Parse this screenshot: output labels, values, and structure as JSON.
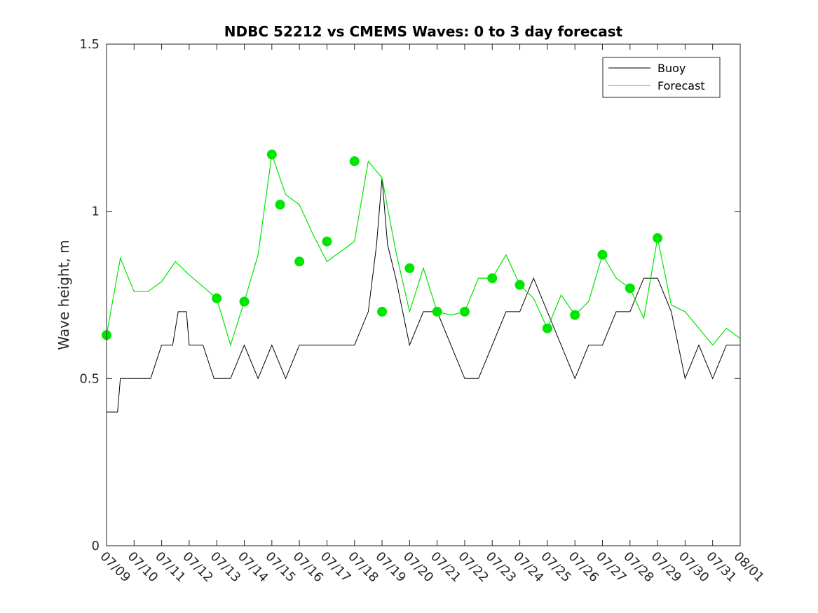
{
  "chart_data": {
    "type": "line",
    "title": "NDBC 52212 vs CMEMS Waves: 0 to 3 day forecast",
    "xlabel": "",
    "ylabel": "Wave height, m",
    "xlim": [
      "07/09",
      "08/01"
    ],
    "ylim": [
      0,
      1.5
    ],
    "yticks": [
      0,
      0.5,
      1,
      1.5
    ],
    "ytick_labels": [
      "0",
      "0.5",
      "1",
      "1.5"
    ],
    "xtick_labels": [
      "07/09",
      "07/10",
      "07/11",
      "07/12",
      "07/13",
      "07/14",
      "07/15",
      "07/16",
      "07/17",
      "07/18",
      "07/19",
      "07/20",
      "07/21",
      "07/22",
      "07/23",
      "07/24",
      "07/25",
      "07/26",
      "07/27",
      "07/28",
      "07/29",
      "07/30",
      "07/31",
      "08/01"
    ],
    "legend": {
      "location": "top-right",
      "entries": [
        {
          "label": "Buoy",
          "color": "#000000"
        },
        {
          "label": "Forecast",
          "color": "#00e600"
        }
      ]
    },
    "colors": {
      "buoy": "#000000",
      "forecast": "#00e600",
      "axis": "#262626"
    },
    "series": [
      {
        "name": "Buoy",
        "x": [
          0,
          0.4,
          0.5,
          0.8,
          1.0,
          1.2,
          1.6,
          2.0,
          2.4,
          2.6,
          2.9,
          3.0,
          3.3,
          3.5,
          3.9,
          4.0,
          4.5,
          5.0,
          5.5,
          6.0,
          6.5,
          7.0,
          7.5,
          8.0,
          8.5,
          9.0,
          9.5,
          9.8,
          10.0,
          10.2,
          10.5,
          11.0,
          11.5,
          12.0,
          12.5,
          13.0,
          13.5,
          14.0,
          14.5,
          15.0,
          15.5,
          16.0,
          16.5,
          17.0,
          17.5,
          18.0,
          18.5,
          19.0,
          19.5,
          20.0,
          20.5,
          21.0,
          21.5,
          22.0,
          22.5,
          23.0
        ],
        "y": [
          0.4,
          0.4,
          0.5,
          0.5,
          0.5,
          0.5,
          0.5,
          0.6,
          0.6,
          0.7,
          0.7,
          0.6,
          0.6,
          0.6,
          0.5,
          0.5,
          0.5,
          0.6,
          0.5,
          0.6,
          0.5,
          0.6,
          0.6,
          0.6,
          0.6,
          0.6,
          0.7,
          0.9,
          1.1,
          0.9,
          0.8,
          0.6,
          0.7,
          0.7,
          0.6,
          0.5,
          0.5,
          0.6,
          0.7,
          0.7,
          0.8,
          0.7,
          0.6,
          0.5,
          0.6,
          0.6,
          0.7,
          0.7,
          0.8,
          0.8,
          0.7,
          0.5,
          0.6,
          0.5,
          0.6,
          0.6
        ]
      },
      {
        "name": "Forecast",
        "x": [
          0,
          0.5,
          1.0,
          1.5,
          2.0,
          2.5,
          3.0,
          4.0,
          4.5,
          5.0,
          5.5,
          6.0,
          6.5,
          7.0,
          7.5,
          8.0,
          8.5,
          9.0,
          9.5,
          10.0,
          10.5,
          11.0,
          11.5,
          12.0,
          12.5,
          13.0,
          13.5,
          14.0,
          14.5,
          15.0,
          15.5,
          16.0,
          16.5,
          17.0,
          17.5,
          18.0,
          18.5,
          19.0,
          19.5,
          20.0,
          20.5,
          21.0,
          21.5,
          22.0,
          22.5,
          23.0
        ],
        "y": [
          0.63,
          0.86,
          0.76,
          0.76,
          0.79,
          0.85,
          0.81,
          0.74,
          0.6,
          0.73,
          0.87,
          1.17,
          1.05,
          1.02,
          0.93,
          0.85,
          0.88,
          0.91,
          1.15,
          1.1,
          0.88,
          0.7,
          0.83,
          0.7,
          0.69,
          0.7,
          0.8,
          0.8,
          0.87,
          0.78,
          0.74,
          0.65,
          0.75,
          0.69,
          0.73,
          0.87,
          0.8,
          0.77,
          0.68,
          0.92,
          0.72,
          0.7,
          0.65,
          0.6,
          0.65,
          0.62
        ]
      }
    ],
    "forecast_initial_points": {
      "x": [
        0,
        4,
        5,
        6,
        6.3,
        7,
        8,
        9,
        10,
        11,
        12,
        13,
        14,
        15,
        16,
        17,
        18,
        19,
        20
      ],
      "y": [
        0.63,
        0.74,
        0.73,
        1.17,
        1.02,
        0.85,
        0.91,
        1.15,
        0.7,
        0.83,
        0.7,
        0.7,
        0.8,
        0.78,
        0.65,
        0.69,
        0.87,
        0.77,
        0.92
      ]
    }
  }
}
